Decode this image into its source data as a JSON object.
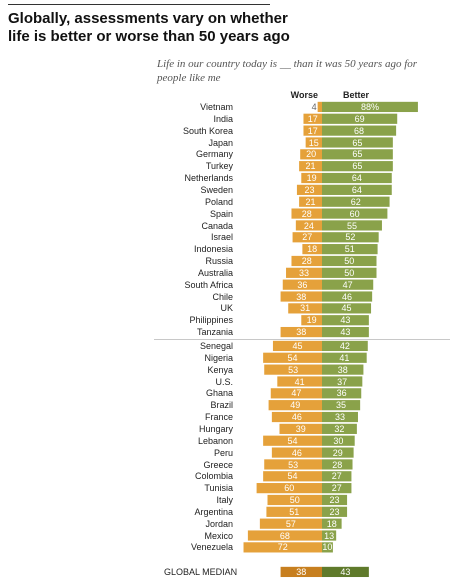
{
  "title": "Globally, assessments vary on whether life is better or worse than 50 years ago",
  "subtitle": "Life in our country today is __ than it was 50 years ago for people like me",
  "colors": {
    "worse": "#e5a13a",
    "better": "#8aa24a",
    "median_worse": "#c77f1f",
    "median_better": "#5f7a2b"
  },
  "chart_data": {
    "type": "bar",
    "orientation": "horizontal-diverging",
    "series": [
      {
        "name": "Worse"
      },
      {
        "name": "Better"
      }
    ],
    "categories": [
      "Vietnam",
      "India",
      "South Korea",
      "Japan",
      "Germany",
      "Turkey",
      "Netherlands",
      "Sweden",
      "Poland",
      "Spain",
      "Canada",
      "Israel",
      "Indonesia",
      "Russia",
      "Australia",
      "South Africa",
      "Chile",
      "UK",
      "Philippines",
      "Tanzania",
      "Senegal",
      "Nigeria",
      "Kenya",
      "U.S.",
      "Ghana",
      "Brazil",
      "France",
      "Hungary",
      "Lebanon",
      "Peru",
      "Greece",
      "Colombia",
      "Tunisia",
      "Italy",
      "Argentina",
      "Jordan",
      "Mexico",
      "Venezuela"
    ],
    "worse": [
      4,
      17,
      17,
      15,
      20,
      21,
      19,
      23,
      21,
      28,
      24,
      27,
      18,
      28,
      33,
      36,
      38,
      31,
      19,
      38,
      45,
      54,
      53,
      41,
      47,
      49,
      46,
      39,
      54,
      46,
      53,
      54,
      60,
      50,
      51,
      57,
      68,
      72
    ],
    "better": [
      "88%",
      69,
      68,
      65,
      65,
      65,
      64,
      64,
      62,
      60,
      55,
      52,
      51,
      50,
      50,
      47,
      46,
      45,
      43,
      43,
      42,
      41,
      38,
      37,
      36,
      35,
      33,
      32,
      30,
      29,
      28,
      27,
      27,
      23,
      23,
      18,
      13,
      10
    ],
    "group_break_after": "Tanzania",
    "median": {
      "label": "GLOBAL MEDIAN",
      "worse": 38,
      "better": 43
    }
  }
}
